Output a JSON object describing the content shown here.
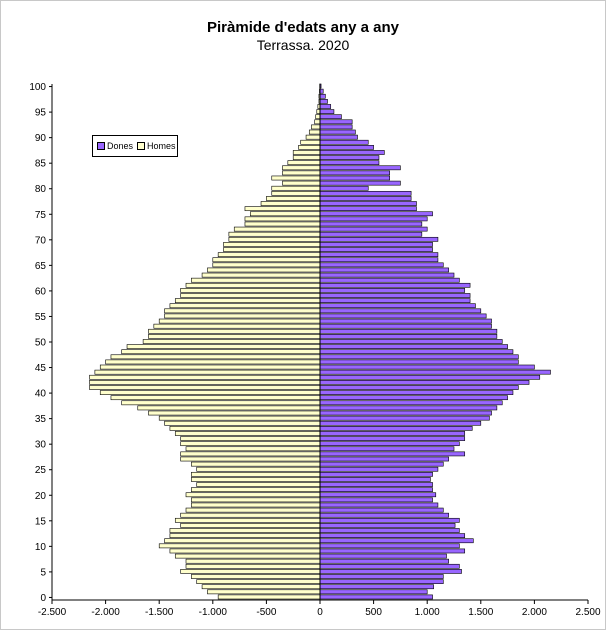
{
  "chart_data": {
    "type": "bar",
    "orientation": "horizontal",
    "title": "Piràmide d'edats any a any",
    "subtitle": "Terrassa. 2020",
    "y_ticks": [
      "0",
      "5",
      "10",
      "15",
      "20",
      "25",
      "30",
      "35",
      "40",
      "45",
      "50",
      "55",
      "60",
      "65",
      "70",
      "75",
      "80",
      "85",
      "90",
      "95",
      "100"
    ],
    "x_ticks": [
      "-2.500",
      "-2.000",
      "-1.500",
      "-1.000",
      "-500",
      "0",
      "500",
      "1.000",
      "1.500",
      "2.000",
      "2.500"
    ],
    "xlim": [
      -2500,
      2500
    ],
    "ylim": [
      0,
      100
    ],
    "ages": [
      0,
      1,
      2,
      3,
      4,
      5,
      6,
      7,
      8,
      9,
      10,
      11,
      12,
      13,
      14,
      15,
      16,
      17,
      18,
      19,
      20,
      21,
      22,
      23,
      24,
      25,
      26,
      27,
      28,
      29,
      30,
      31,
      32,
      33,
      34,
      35,
      36,
      37,
      38,
      39,
      40,
      41,
      42,
      43,
      44,
      45,
      46,
      47,
      48,
      49,
      50,
      51,
      52,
      53,
      54,
      55,
      56,
      57,
      58,
      59,
      60,
      61,
      62,
      63,
      64,
      65,
      66,
      67,
      68,
      69,
      70,
      71,
      72,
      73,
      74,
      75,
      76,
      77,
      78,
      79,
      80,
      81,
      82,
      83,
      84,
      85,
      86,
      87,
      88,
      89,
      90,
      91,
      92,
      93,
      94,
      95,
      96,
      97,
      98,
      99,
      100
    ],
    "grid": false,
    "legend_position": "top-left",
    "colors": {
      "dones": "#9966ff",
      "homes": "#ffffcc",
      "edge": "#000000"
    },
    "series": [
      {
        "name": "Dones",
        "values": [
          1050,
          1000,
          1060,
          1150,
          1150,
          1320,
          1300,
          1200,
          1180,
          1350,
          1300,
          1430,
          1350,
          1300,
          1260,
          1300,
          1200,
          1150,
          1100,
          1050,
          1080,
          1050,
          1050,
          1030,
          1050,
          1100,
          1150,
          1200,
          1350,
          1250,
          1300,
          1350,
          1350,
          1420,
          1500,
          1580,
          1600,
          1650,
          1700,
          1750,
          1800,
          1850,
          1950,
          2050,
          2150,
          2000,
          1850,
          1850,
          1800,
          1750,
          1700,
          1650,
          1650,
          1600,
          1600,
          1550,
          1500,
          1450,
          1400,
          1400,
          1350,
          1400,
          1300,
          1250,
          1200,
          1150,
          1100,
          1100,
          1050,
          1050,
          1100,
          950,
          1000,
          950,
          1000,
          1050,
          900,
          900,
          850,
          850,
          450,
          750,
          650,
          650,
          750,
          550,
          550,
          600,
          500,
          450,
          350,
          330,
          300,
          300,
          200,
          130,
          100,
          70,
          50,
          30,
          10
        ]
      },
      {
        "name": "Homes",
        "values": [
          950,
          1050,
          1100,
          1150,
          1200,
          1300,
          1250,
          1250,
          1350,
          1400,
          1500,
          1450,
          1400,
          1400,
          1300,
          1350,
          1300,
          1250,
          1200,
          1200,
          1250,
          1200,
          1150,
          1200,
          1200,
          1150,
          1200,
          1300,
          1300,
          1250,
          1300,
          1300,
          1350,
          1400,
          1450,
          1500,
          1600,
          1700,
          1850,
          1950,
          2050,
          2150,
          2150,
          2150,
          2100,
          2050,
          2000,
          1950,
          1850,
          1800,
          1650,
          1600,
          1600,
          1550,
          1500,
          1450,
          1450,
          1400,
          1350,
          1300,
          1300,
          1250,
          1200,
          1100,
          1050,
          1000,
          1000,
          950,
          900,
          900,
          850,
          850,
          800,
          700,
          700,
          650,
          700,
          550,
          500,
          450,
          450,
          350,
          450,
          350,
          350,
          300,
          250,
          250,
          200,
          180,
          130,
          100,
          80,
          50,
          40,
          30,
          20,
          10,
          10,
          5,
          3
        ]
      }
    ]
  }
}
